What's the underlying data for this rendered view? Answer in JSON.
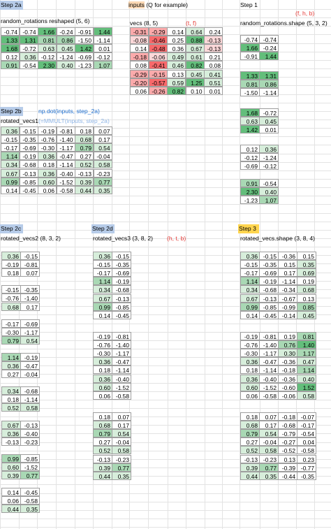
{
  "headers": {
    "step2a": "Step 2a",
    "inputs": "inputs (Q for example)",
    "step1": "Step 1",
    "step2b": "Step 2b",
    "np_dot": "np.dot(inputs, step_2a)",
    "step2c": "Step 2c",
    "step2d": "Step 2d",
    "step3": "Step 3"
  },
  "labels": {
    "rr_reshaped": "random_rotations reshaped (5, 6)",
    "vecs": "vecs (8, 5)",
    "tf": "(t, f)",
    "fhb": "(f, h, b)",
    "rr_shape": "random_rotations.shape (5, 3, 2)",
    "rotated_vecs1": "rotated_vecs1",
    "mmult": "(=MMULT(inputs, step_2a)",
    "rotated_vecs2": "rotated_vecs2 (8, 3, 2)",
    "rotated_vecs3": "rotated_vecs3 (3, 8, 2)",
    "htb": "(h, t, b)",
    "rotated_vecs_shape": "rotated_vecs.shape (3, 8, 4)"
  },
  "colors": {
    "green_strong": "#63be7b",
    "green_mid": "#a9d8b4",
    "green_light": "#d7eedb",
    "red_strong": "#f8696b",
    "red_mid": "#fbaaab",
    "red_light": "#fcd8d9",
    "white": "#ffffff"
  },
  "rr_reshaped": [
    [
      "-0.74",
      "-0.74",
      "1.66",
      "-0.24",
      "-0.91",
      "1.44"
    ],
    [
      "1.33",
      "1.31",
      "0.81",
      "0.86",
      "-1.50",
      "-1.14"
    ],
    [
      "1.68",
      "-0.72",
      "0.63",
      "0.45",
      "1.42",
      "0.01"
    ],
    [
      "0.12",
      "0.36",
      "-0.12",
      "-1.24",
      "-0.69",
      "-0.12"
    ],
    [
      "0.91",
      "-0.54",
      "2.30",
      "0.40",
      "-1.23",
      "1.07"
    ]
  ],
  "vecs": [
    [
      "-0.31",
      "-0.29",
      "0.14",
      "0.64",
      "0.24"
    ],
    [
      "-0.08",
      "-0.46",
      "0.25",
      "0.88",
      "-0.13"
    ],
    [
      "0.14",
      "-0.48",
      "0.36",
      "0.67",
      "-0.13"
    ],
    [
      "-0.18",
      "-0.06",
      "0.49",
      "0.61",
      "0.21"
    ],
    [
      "0.08",
      "-0.41",
      "0.46",
      "0.82",
      "0.08"
    ],
    [
      "-0.29",
      "-0.15",
      "0.13",
      "0.45",
      "0.41"
    ],
    [
      "-0.20",
      "-0.57",
      "0.59",
      "1.25",
      "0.51"
    ],
    [
      "0.06",
      "-0.26",
      "0.82",
      "0.10",
      "0.01"
    ]
  ],
  "step1_blocks": [
    [
      [
        "-0.74",
        "-0.74"
      ],
      [
        "1.66",
        "-0.24"
      ],
      [
        "-0.91",
        "1.44"
      ]
    ],
    [
      [
        "1.33",
        "1.31"
      ],
      [
        "0.81",
        "0.86"
      ],
      [
        "-1.50",
        "-1.14"
      ]
    ],
    [
      [
        "1.68",
        "-0.72"
      ],
      [
        "0.63",
        "0.45"
      ],
      [
        "1.42",
        "0.01"
      ]
    ],
    [
      [
        "0.12",
        "0.36"
      ],
      [
        "-0.12",
        "-1.24"
      ],
      [
        "-0.69",
        "-0.12"
      ]
    ],
    [
      [
        "0.91",
        "-0.54"
      ],
      [
        "2.30",
        "0.40"
      ],
      [
        "-1.23",
        "1.07"
      ]
    ]
  ],
  "rotated_vecs1": [
    [
      "0.36",
      "-0.15",
      "-0.19",
      "-0.81",
      "0.18",
      "0.07"
    ],
    [
      "-0.15",
      "-0.35",
      "-0.76",
      "-1.40",
      "0.68",
      "0.17"
    ],
    [
      "-0.17",
      "-0.69",
      "-0.30",
      "-1.17",
      "0.79",
      "0.54"
    ],
    [
      "1.14",
      "-0.19",
      "0.36",
      "-0.47",
      "0.27",
      "-0.04"
    ],
    [
      "0.34",
      "-0.68",
      "0.18",
      "-1.14",
      "0.52",
      "0.58"
    ],
    [
      "0.67",
      "-0.13",
      "0.36",
      "-0.40",
      "-0.13",
      "-0.23"
    ],
    [
      "0.99",
      "-0.85",
      "0.60",
      "-1.52",
      "0.39",
      "0.77"
    ],
    [
      "0.14",
      "-0.45",
      "0.06",
      "-0.58",
      "0.44",
      "0.35"
    ]
  ],
  "rotated_vecs2": [
    [
      [
        "0.36",
        "-0.15"
      ],
      [
        "-0.19",
        "-0.81"
      ],
      [
        "0.18",
        "0.07"
      ]
    ],
    [
      [
        "-0.15",
        "-0.35"
      ],
      [
        "-0.76",
        "-1.40"
      ],
      [
        "0.68",
        "0.17"
      ]
    ],
    [
      [
        "-0.17",
        "-0.69"
      ],
      [
        "-0.30",
        "-1.17"
      ],
      [
        "0.79",
        "0.54"
      ]
    ],
    [
      [
        "1.14",
        "-0.19"
      ],
      [
        "0.36",
        "-0.47"
      ],
      [
        "0.27",
        "-0.04"
      ]
    ],
    [
      [
        "0.34",
        "-0.68"
      ],
      [
        "0.18",
        "-1.14"
      ],
      [
        "0.52",
        "0.58"
      ]
    ],
    [
      [
        "0.67",
        "-0.13"
      ],
      [
        "0.36",
        "-0.40"
      ],
      [
        "-0.13",
        "-0.23"
      ]
    ],
    [
      [
        "0.99",
        "-0.85"
      ],
      [
        "0.60",
        "-1.52"
      ],
      [
        "0.39",
        "0.77"
      ]
    ],
    [
      [
        "0.14",
        "-0.45"
      ],
      [
        "0.06",
        "-0.58"
      ],
      [
        "0.44",
        "0.35"
      ]
    ]
  ],
  "rotated_vecs3": [
    [
      [
        "0.36",
        "-0.15"
      ],
      [
        "-0.15",
        "-0.35"
      ],
      [
        "-0.17",
        "-0.69"
      ],
      [
        "1.14",
        "-0.19"
      ],
      [
        "0.34",
        "-0.68"
      ],
      [
        "0.67",
        "-0.13"
      ],
      [
        "0.99",
        "-0.85"
      ],
      [
        "0.14",
        "-0.45"
      ]
    ],
    [
      [
        "-0.19",
        "-0.81"
      ],
      [
        "-0.76",
        "-1.40"
      ],
      [
        "-0.30",
        "-1.17"
      ],
      [
        "0.36",
        "-0.47"
      ],
      [
        "0.18",
        "-1.14"
      ],
      [
        "0.36",
        "-0.40"
      ],
      [
        "0.60",
        "-1.52"
      ],
      [
        "0.06",
        "-0.58"
      ]
    ],
    [
      [
        "0.18",
        "0.07"
      ],
      [
        "0.68",
        "0.17"
      ],
      [
        "0.79",
        "0.54"
      ],
      [
        "0.27",
        "-0.04"
      ],
      [
        "0.52",
        "0.58"
      ],
      [
        "-0.13",
        "-0.23"
      ],
      [
        "0.39",
        "0.77"
      ],
      [
        "0.44",
        "0.35"
      ]
    ]
  ],
  "rotated_vecs": [
    [
      [
        "0.36",
        "-0.15",
        "-0.36",
        "0.15"
      ],
      [
        "-0.15",
        "-0.35",
        "0.15",
        "0.35"
      ],
      [
        "-0.17",
        "-0.69",
        "0.17",
        "0.69"
      ],
      [
        "1.14",
        "-0.19",
        "-1.14",
        "0.19"
      ],
      [
        "0.34",
        "-0.68",
        "-0.34",
        "0.68"
      ],
      [
        "0.67",
        "-0.13",
        "-0.67",
        "0.13"
      ],
      [
        "0.99",
        "-0.85",
        "-0.99",
        "0.85"
      ],
      [
        "0.14",
        "-0.45",
        "-0.14",
        "0.45"
      ]
    ],
    [
      [
        "-0.19",
        "-0.81",
        "0.19",
        "0.81"
      ],
      [
        "-0.76",
        "-1.40",
        "0.76",
        "1.40"
      ],
      [
        "-0.30",
        "-1.17",
        "0.30",
        "1.17"
      ],
      [
        "0.36",
        "-0.47",
        "-0.36",
        "0.47"
      ],
      [
        "0.18",
        "-1.14",
        "-0.18",
        "1.14"
      ],
      [
        "0.36",
        "-0.40",
        "-0.36",
        "0.40"
      ],
      [
        "0.60",
        "-1.52",
        "-0.60",
        "1.52"
      ],
      [
        "0.06",
        "-0.58",
        "-0.06",
        "0.58"
      ]
    ],
    [
      [
        "0.18",
        "0.07",
        "-0.18",
        "-0.07"
      ],
      [
        "0.68",
        "0.17",
        "-0.68",
        "-0.17"
      ],
      [
        "0.79",
        "0.54",
        "-0.79",
        "-0.54"
      ],
      [
        "0.27",
        "-0.04",
        "-0.27",
        "0.04"
      ],
      [
        "0.52",
        "0.58",
        "-0.52",
        "-0.58"
      ],
      [
        "-0.13",
        "-0.23",
        "0.13",
        "0.23"
      ],
      [
        "0.39",
        "0.77",
        "-0.39",
        "-0.77"
      ],
      [
        "0.44",
        "0.35",
        "-0.44",
        "-0.35"
      ]
    ]
  ]
}
